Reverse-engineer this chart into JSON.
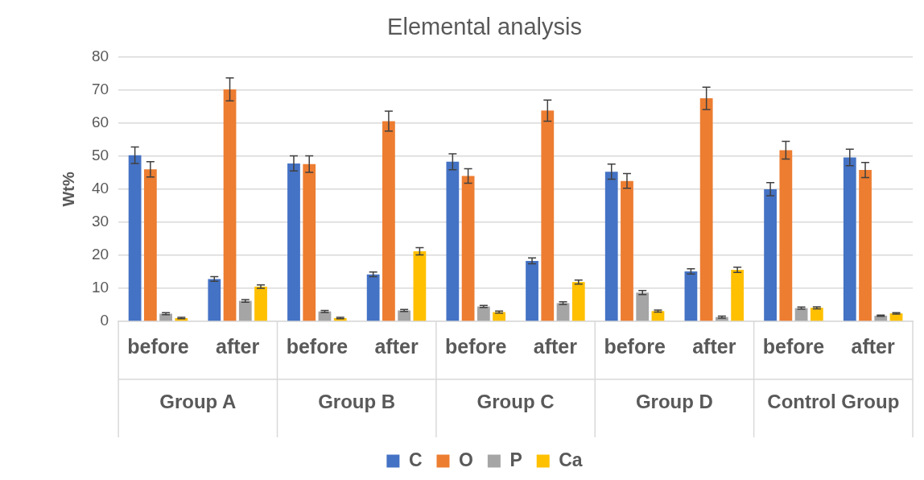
{
  "chart_data": {
    "type": "bar",
    "title": "Elemental analysis",
    "ylabel": "Wt%",
    "categories": [
      "before",
      "after",
      "before",
      "after",
      "before",
      "after",
      "before",
      "after",
      "before",
      "after"
    ],
    "annotations": [
      "Group A",
      "Group B",
      "Group C",
      "Group D",
      "Control Group"
    ],
    "series": [
      {
        "name": "C",
        "color": "#4472c4",
        "values": [
          50.3,
          12.8,
          47.8,
          14.2,
          48.3,
          18.3,
          45.3,
          15.1,
          40,
          49.6
        ],
        "errors": [
          2.5,
          0.7,
          2.3,
          0.7,
          2.4,
          0.9,
          2.3,
          0.8,
          2,
          2.5
        ]
      },
      {
        "name": "O",
        "color": "#ed7d31",
        "values": [
          46,
          70.2,
          47.6,
          60.6,
          44,
          63.8,
          42.5,
          67.5,
          51.8,
          45.8
        ],
        "errors": [
          2.3,
          3.5,
          2.5,
          3,
          2.2,
          3.2,
          2.2,
          3.4,
          2.7,
          2.3
        ]
      },
      {
        "name": "P",
        "color": "#a5a5a5",
        "values": [
          2.3,
          6.2,
          3,
          3.3,
          4.5,
          5.5,
          8.7,
          1.3,
          4,
          1.7
        ],
        "errors": [
          0.3,
          0.4,
          0.3,
          0.3,
          0.3,
          0.4,
          0.6,
          0.3,
          0.3,
          0.2
        ]
      },
      {
        "name": "Ca",
        "color": "#ffc000",
        "values": [
          1,
          10.5,
          1,
          21.2,
          2.8,
          11.9,
          3.1,
          15.6,
          4.1,
          2.4
        ],
        "errors": [
          0.2,
          0.5,
          0.2,
          1.1,
          0.3,
          0.6,
          0.3,
          0.8,
          0.3,
          0.2
        ]
      }
    ],
    "ylim": [
      0,
      80
    ],
    "yticks": [
      0,
      10,
      20,
      30,
      40,
      50,
      60,
      70,
      80
    ],
    "grid": "y",
    "legend": "bottom"
  }
}
